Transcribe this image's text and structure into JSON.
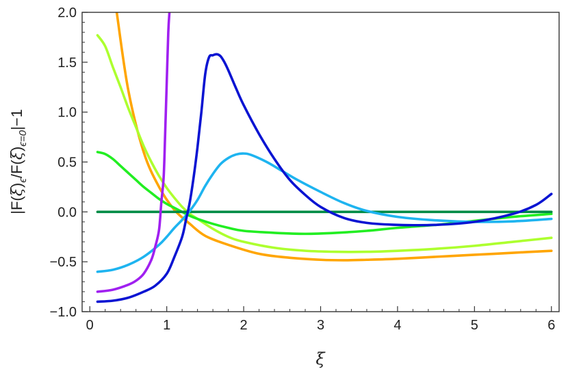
{
  "chart_data": {
    "type": "line",
    "title": "",
    "xlabel": "ξ",
    "ylabel_parts": {
      "bar_open": "|F(",
      "xi1": "ξ",
      "close1": ")",
      "eps": "ϵ",
      "slash": "/F(",
      "xi2": "ξ",
      "close2": ")",
      "eps0": "ϵ=0",
      "bar_close": "|−1"
    },
    "xlim": [
      -0.1,
      6.1
    ],
    "ylim": [
      -1.0,
      2.0
    ],
    "xticks": [
      0,
      1,
      2,
      3,
      4,
      5,
      6
    ],
    "xtick_labels": [
      "0",
      "1",
      "2",
      "3",
      "4",
      "5",
      "6"
    ],
    "yticks": [
      -1.0,
      -0.5,
      0.0,
      0.5,
      1.0,
      1.5,
      2.0
    ],
    "ytick_labels": [
      "−1.0",
      "−0.5",
      "0.0",
      "0.5",
      "1.0",
      "1.5",
      "2.0"
    ],
    "grid": false,
    "legend": "none",
    "series": [
      {
        "color": "#FFA500",
        "x": [
          0.35,
          0.5,
          0.7,
          0.9,
          1.1,
          1.3,
          1.5,
          1.8,
          2.2,
          2.6,
          3.0,
          3.3,
          3.6,
          4.0,
          4.5,
          5.0,
          5.5,
          6.0
        ],
        "y": [
          2.0,
          1.22,
          0.6,
          0.25,
          0.02,
          -0.12,
          -0.24,
          -0.33,
          -0.42,
          -0.46,
          -0.48,
          -0.485,
          -0.48,
          -0.47,
          -0.45,
          -0.43,
          -0.41,
          -0.39
        ]
      },
      {
        "color": "#ADFF2F",
        "x": [
          0.1,
          0.2,
          0.3,
          0.4,
          0.5,
          0.6,
          0.7,
          0.8,
          0.9,
          1.0,
          1.1,
          1.2,
          1.3,
          1.4,
          1.6,
          1.8,
          2.0,
          2.4,
          2.8,
          3.2,
          3.6,
          4.0,
          4.5,
          5.0,
          5.5,
          6.0
        ],
        "y": [
          1.77,
          1.66,
          1.45,
          1.25,
          1.04,
          0.85,
          0.66,
          0.5,
          0.36,
          0.24,
          0.14,
          0.05,
          -0.02,
          -0.07,
          -0.17,
          -0.25,
          -0.3,
          -0.36,
          -0.39,
          -0.4,
          -0.4,
          -0.39,
          -0.37,
          -0.34,
          -0.3,
          -0.26
        ]
      },
      {
        "color": "#22EE22",
        "x": [
          0.1,
          0.2,
          0.3,
          0.4,
          0.5,
          0.6,
          0.7,
          0.8,
          0.9,
          1.0,
          1.1,
          1.2,
          1.3,
          1.4,
          1.6,
          1.8,
          2.0,
          2.4,
          2.8,
          3.2,
          3.6,
          4.0,
          4.5,
          5.0,
          5.5,
          6.0
        ],
        "y": [
          0.6,
          0.58,
          0.53,
          0.46,
          0.39,
          0.32,
          0.25,
          0.19,
          0.13,
          0.08,
          0.04,
          0.0,
          -0.04,
          -0.07,
          -0.12,
          -0.16,
          -0.19,
          -0.21,
          -0.22,
          -0.21,
          -0.19,
          -0.16,
          -0.13,
          -0.09,
          -0.05,
          -0.02
        ]
      },
      {
        "color": "#008B45",
        "x": [
          0.1,
          6.0
        ],
        "y": [
          0.0,
          0.0
        ]
      },
      {
        "color": "#1EB4F0",
        "x": [
          0.1,
          0.3,
          0.5,
          0.7,
          0.9,
          1.0,
          1.1,
          1.2,
          1.3,
          1.4,
          1.5,
          1.6,
          1.7,
          1.8,
          1.9,
          2.0,
          2.1,
          2.3,
          2.5,
          2.7,
          3.0,
          3.3,
          3.6,
          4.0,
          4.5,
          5.0,
          5.5,
          6.0
        ],
        "y": [
          -0.6,
          -0.58,
          -0.53,
          -0.45,
          -0.33,
          -0.25,
          -0.16,
          -0.08,
          0.01,
          0.12,
          0.26,
          0.38,
          0.48,
          0.54,
          0.575,
          0.585,
          0.57,
          0.5,
          0.41,
          0.32,
          0.2,
          0.09,
          0.01,
          -0.05,
          -0.085,
          -0.1,
          -0.095,
          -0.07
        ]
      },
      {
        "color": "#A020F0",
        "x": [
          0.1,
          0.3,
          0.5,
          0.6,
          0.7,
          0.8,
          0.85,
          0.9,
          0.93,
          0.96,
          0.98,
          1.0,
          1.02,
          1.035
        ],
        "y": [
          -0.8,
          -0.78,
          -0.73,
          -0.69,
          -0.62,
          -0.48,
          -0.35,
          -0.18,
          0.1,
          0.35,
          0.8,
          1.3,
          1.8,
          2.0
        ]
      },
      {
        "color": "#0A14D2",
        "x": [
          0.1,
          0.3,
          0.5,
          0.7,
          0.85,
          1.0,
          1.1,
          1.2,
          1.25,
          1.3,
          1.35,
          1.4,
          1.45,
          1.5,
          1.55,
          1.6,
          1.65,
          1.7,
          1.75,
          1.8,
          1.9,
          2.0,
          2.2,
          2.4,
          2.6,
          2.8,
          3.0,
          3.3,
          3.6,
          4.0,
          4.5,
          5.0,
          5.5,
          5.8,
          6.0
        ],
        "y": [
          -0.9,
          -0.89,
          -0.86,
          -0.8,
          -0.74,
          -0.62,
          -0.45,
          -0.25,
          -0.08,
          0.1,
          0.35,
          0.65,
          1.0,
          1.38,
          1.55,
          1.57,
          1.58,
          1.56,
          1.5,
          1.42,
          1.24,
          1.07,
          0.78,
          0.53,
          0.32,
          0.17,
          0.05,
          -0.06,
          -0.11,
          -0.13,
          -0.13,
          -0.1,
          -0.02,
          0.07,
          0.18
        ]
      }
    ]
  }
}
